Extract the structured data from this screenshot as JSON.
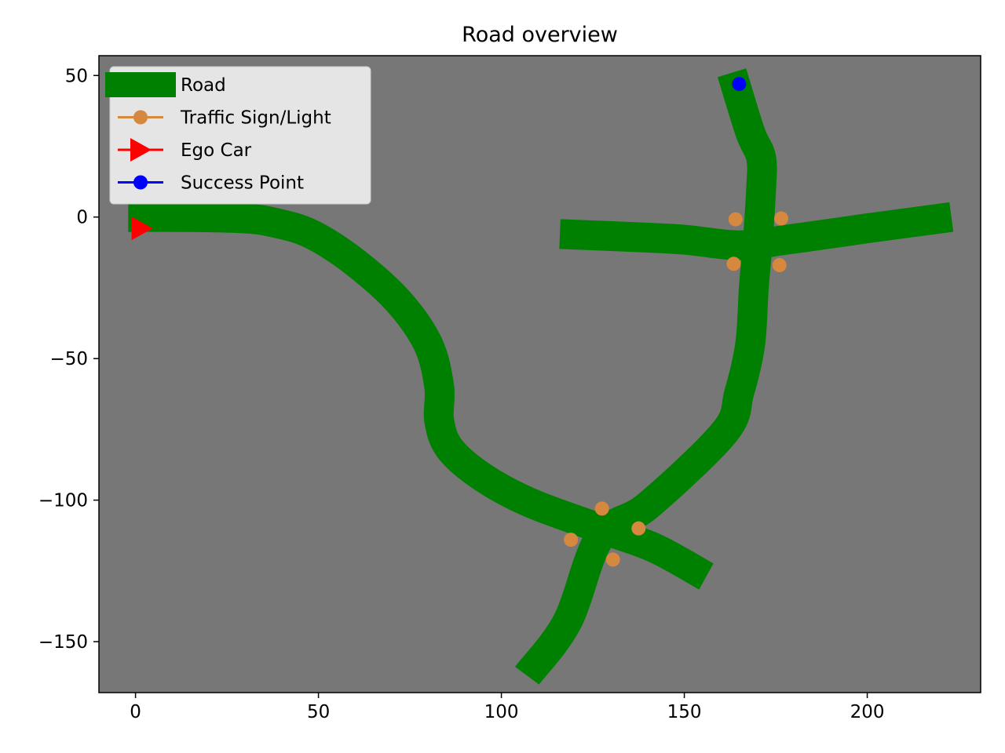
{
  "chart_data": {
    "type": "line",
    "title": "Road overview",
    "xlabel": "",
    "ylabel": "",
    "xlim": [
      -10,
      231
    ],
    "ylim": [
      -168,
      57
    ],
    "xticks": [
      0,
      50,
      100,
      150,
      200
    ],
    "yticks": [
      50,
      0,
      -50,
      -100,
      -150
    ],
    "xtick_labels": [
      "0",
      "50",
      "100",
      "150",
      "200"
    ],
    "ytick_labels": [
      "50",
      "0",
      "−50",
      "−100",
      "−150"
    ],
    "grid": false,
    "legend_position": "upper-left",
    "background_color": "#777777",
    "colors": {
      "road": "#008000",
      "sign": "#d6883f",
      "ego": "#ff0000",
      "success": "#0000ff"
    },
    "legend": [
      {
        "label": "Road",
        "kind": "road"
      },
      {
        "label": "Traffic Sign/Light",
        "kind": "sign"
      },
      {
        "label": "Ego Car",
        "kind": "ego"
      },
      {
        "label": "Success Point",
        "kind": "success"
      }
    ],
    "series": [
      {
        "name": "Road",
        "kind": "road",
        "segments": [
          {
            "points": [
              [
                -2,
                0
              ],
              [
                15,
                0
              ],
              [
                30,
                -0.5
              ],
              [
                38,
                -2
              ],
              [
                48,
                -6
              ],
              [
                60,
                -16
              ],
              [
                72,
                -30
              ],
              [
                80,
                -45
              ],
              [
                83,
                -60
              ],
              [
                83,
                -72
              ],
              [
                86,
                -82
              ],
              [
                95,
                -92
              ],
              [
                108,
                -101
              ],
              [
                127,
                -110
              ],
              [
                142,
                -117
              ],
              [
                156,
                -127
              ]
            ]
          },
          {
            "points": [
              [
                107,
                -162
              ],
              [
                118,
                -143
              ],
              [
                127,
                -113
              ],
              [
                140,
                -102
              ],
              [
                161,
                -76
              ],
              [
                165,
                -62
              ],
              [
                168,
                -45
              ],
              [
                169,
                -25
              ],
              [
                170,
                -10
              ],
              [
                171,
                10
              ],
              [
                171,
                21
              ],
              [
                168,
                30
              ],
              [
                163,
                51
              ]
            ]
          },
          {
            "points": [
              [
                116,
                -6
              ],
              [
                135,
                -7
              ],
              [
                150,
                -8
              ],
              [
                165,
                -10
              ],
              [
                178,
                -8
              ],
              [
                200,
                -4
              ],
              [
                223,
                0
              ]
            ]
          }
        ]
      },
      {
        "name": "Traffic Sign/Light",
        "kind": "sign",
        "points": [
          [
            127.5,
            -103
          ],
          [
            137.5,
            -110
          ],
          [
            119,
            -114
          ],
          [
            130.5,
            -121
          ],
          [
            164,
            -0.8
          ],
          [
            176.5,
            -0.5
          ],
          [
            163.5,
            -16.5
          ],
          [
            176,
            -17
          ]
        ]
      },
      {
        "name": "Ego Car",
        "kind": "ego",
        "points": [
          [
            1.5,
            -4
          ]
        ]
      },
      {
        "name": "Success Point",
        "kind": "success",
        "points": [
          [
            165,
            47
          ]
        ]
      }
    ]
  }
}
